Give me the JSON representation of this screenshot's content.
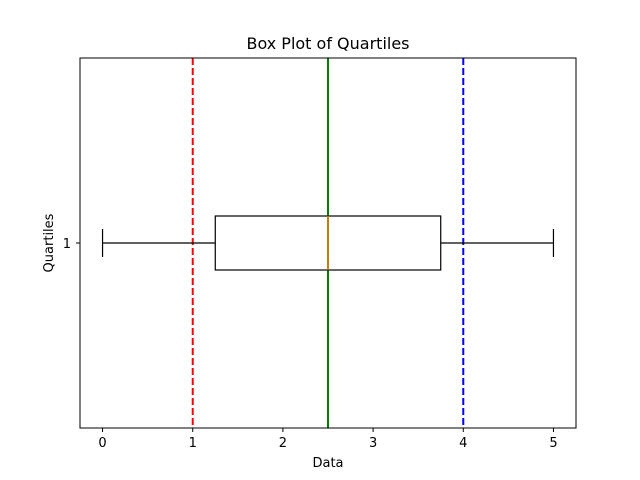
{
  "chart_data": {
    "type": "box",
    "title": "Box Plot of Quartiles",
    "xlabel": "Data",
    "ylabel": "Quartiles",
    "orientation": "horizontal",
    "xlim": [
      -0.25,
      5.25
    ],
    "x_ticks": [
      "0",
      "1",
      "2",
      "3",
      "4",
      "5"
    ],
    "y_ticks": [
      "1"
    ],
    "grid": false,
    "boxes": [
      {
        "position": 1,
        "whisker_low": 0,
        "q1": 1.25,
        "median": 2.5,
        "q3": 3.75,
        "whisker_high": 5
      }
    ],
    "reference_lines": [
      {
        "x": 1,
        "color": "#ff0000",
        "style": "dashed"
      },
      {
        "x": 2.5,
        "color": "#008000",
        "style": "solid"
      },
      {
        "x": 4,
        "color": "#0000ff",
        "style": "dashed"
      }
    ],
    "colors": {
      "box": "#000000",
      "median": "#ff7f0e",
      "whisker": "#000000"
    }
  }
}
